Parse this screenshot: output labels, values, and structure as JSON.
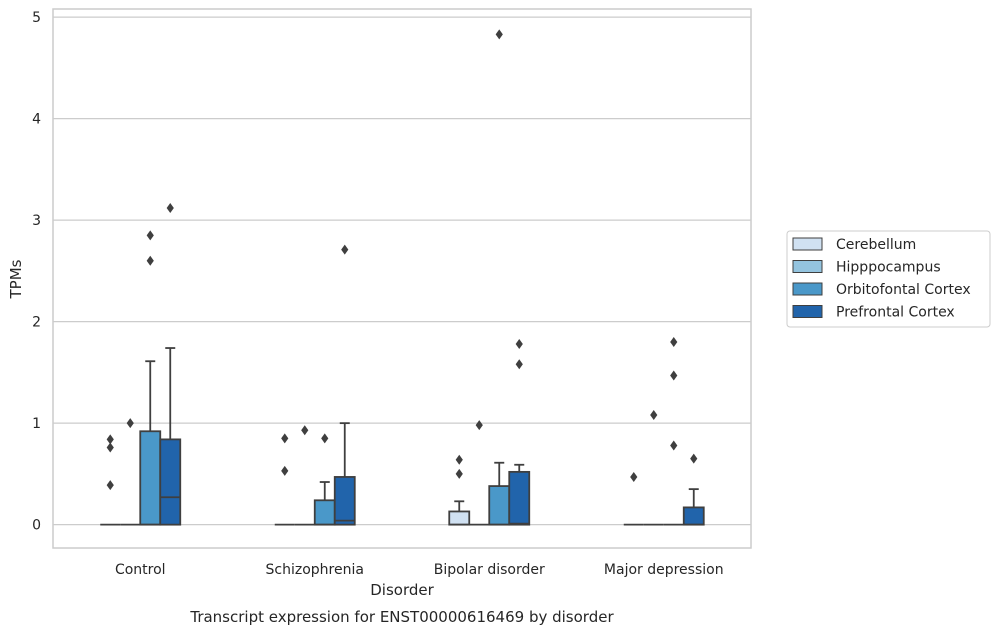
{
  "chart_data": {
    "type": "box",
    "ylabel": "TPMs",
    "xlabel": "Disorder",
    "caption": "Transcript expression for ENST00000616469 by disorder",
    "ylim": [
      -0.23,
      5.08
    ],
    "yticks": [
      0,
      1,
      2,
      3,
      4,
      5
    ],
    "grid": "horizontal",
    "legend_position": "right",
    "categories": [
      "Control",
      "Schizophrenia",
      "Bipolar disorder",
      "Major depression"
    ],
    "series": [
      {
        "name": "Cerebellum",
        "color": "#d0e1f2",
        "boxes": [
          {
            "q1": 0,
            "median": 0,
            "q3": 0,
            "whisker_low": 0,
            "whisker_high": 0,
            "outliers": [
              0.84,
              0.76,
              0.39
            ]
          },
          {
            "q1": 0,
            "median": 0,
            "q3": 0,
            "whisker_low": 0,
            "whisker_high": 0,
            "outliers": [
              0.85,
              0.53
            ]
          },
          {
            "q1": 0,
            "median": 0,
            "q3": 0.13,
            "whisker_low": 0,
            "whisker_high": 0.23,
            "outliers": [
              0.64,
              0.5
            ]
          },
          {
            "q1": 0,
            "median": 0,
            "q3": 0,
            "whisker_low": 0,
            "whisker_high": 0,
            "outliers": [
              0.47
            ]
          }
        ]
      },
      {
        "name": "Hipppocampus",
        "color": "#94c4df",
        "boxes": [
          {
            "q1": 0,
            "median": 0,
            "q3": 0,
            "whisker_low": 0,
            "whisker_high": 0,
            "outliers": [
              1.0
            ]
          },
          {
            "q1": 0,
            "median": 0,
            "q3": 0,
            "whisker_low": 0,
            "whisker_high": 0,
            "outliers": [
              0.93
            ]
          },
          {
            "q1": 0,
            "median": 0,
            "q3": 0,
            "whisker_low": 0,
            "whisker_high": 0,
            "outliers": [
              0.98
            ]
          },
          {
            "q1": 0,
            "median": 0,
            "q3": 0,
            "whisker_low": 0,
            "whisker_high": 0,
            "outliers": [
              1.08
            ]
          }
        ]
      },
      {
        "name": "Orbitofontal Cortex",
        "color": "#4a98c9",
        "boxes": [
          {
            "q1": 0,
            "median": 0,
            "q3": 0.92,
            "whisker_low": 0,
            "whisker_high": 1.61,
            "outliers": [
              2.85,
              2.6
            ]
          },
          {
            "q1": 0,
            "median": 0,
            "q3": 0.24,
            "whisker_low": 0,
            "whisker_high": 0.42,
            "outliers": [
              0.85
            ]
          },
          {
            "q1": 0,
            "median": 0,
            "q3": 0.38,
            "whisker_low": 0,
            "whisker_high": 0.61,
            "outliers": [
              4.83
            ]
          },
          {
            "q1": 0,
            "median": 0,
            "q3": 0,
            "whisker_low": 0,
            "whisker_high": 0,
            "outliers": [
              1.8,
              1.47,
              0.78
            ]
          }
        ]
      },
      {
        "name": "Prefrontal Cortex",
        "color": "#2164ab",
        "boxes": [
          {
            "q1": 0,
            "median": 0.27,
            "q3": 0.84,
            "whisker_low": 0,
            "whisker_high": 1.74,
            "outliers": [
              3.12
            ]
          },
          {
            "q1": 0,
            "median": 0.04,
            "q3": 0.47,
            "whisker_low": 0,
            "whisker_high": 1.0,
            "outliers": [
              2.71
            ]
          },
          {
            "q1": 0,
            "median": 0.01,
            "q3": 0.52,
            "whisker_low": 0,
            "whisker_high": 0.59,
            "outliers": [
              1.78,
              1.58
            ]
          },
          {
            "q1": 0,
            "median": 0,
            "q3": 0.17,
            "whisker_low": 0,
            "whisker_high": 0.35,
            "outliers": [
              0.65
            ]
          }
        ]
      }
    ]
  }
}
